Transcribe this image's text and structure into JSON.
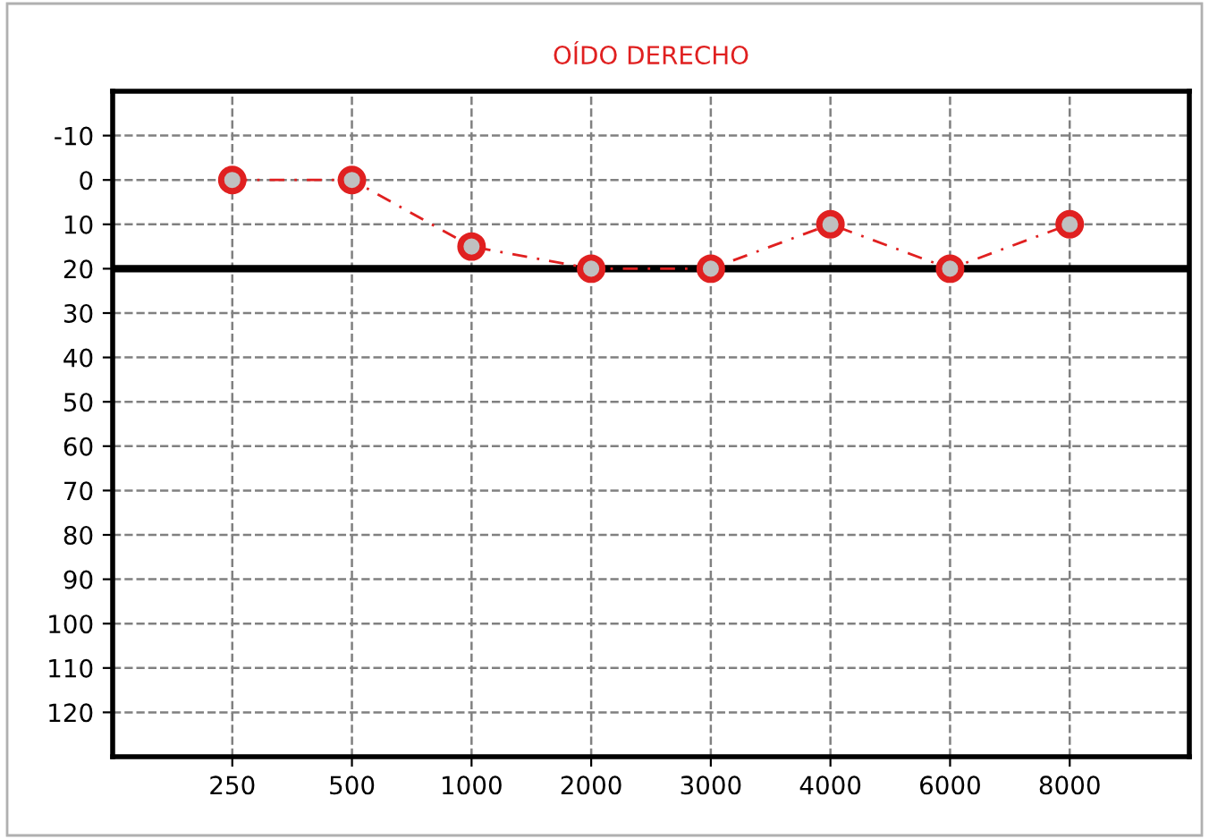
{
  "chart_data": {
    "type": "line",
    "title": "OÍDO DERECHO",
    "categories": [
      "250",
      "500",
      "1000",
      "2000",
      "3000",
      "4000",
      "6000",
      "8000"
    ],
    "series": [
      {
        "color": "#e02020",
        "values": [
          0,
          0,
          15,
          20,
          20,
          10,
          20,
          10
        ]
      }
    ],
    "ylim": [
      130,
      -20
    ],
    "yticks": [
      -10,
      0,
      10,
      20,
      30,
      40,
      50,
      60,
      70,
      80,
      90,
      100,
      110,
      120
    ],
    "ref_lines": [
      {
        "axis": "y",
        "value": 20,
        "color": "#000000",
        "line_style": "solid"
      }
    ],
    "grid": true,
    "marker": "circle",
    "line_style": "dashed"
  }
}
